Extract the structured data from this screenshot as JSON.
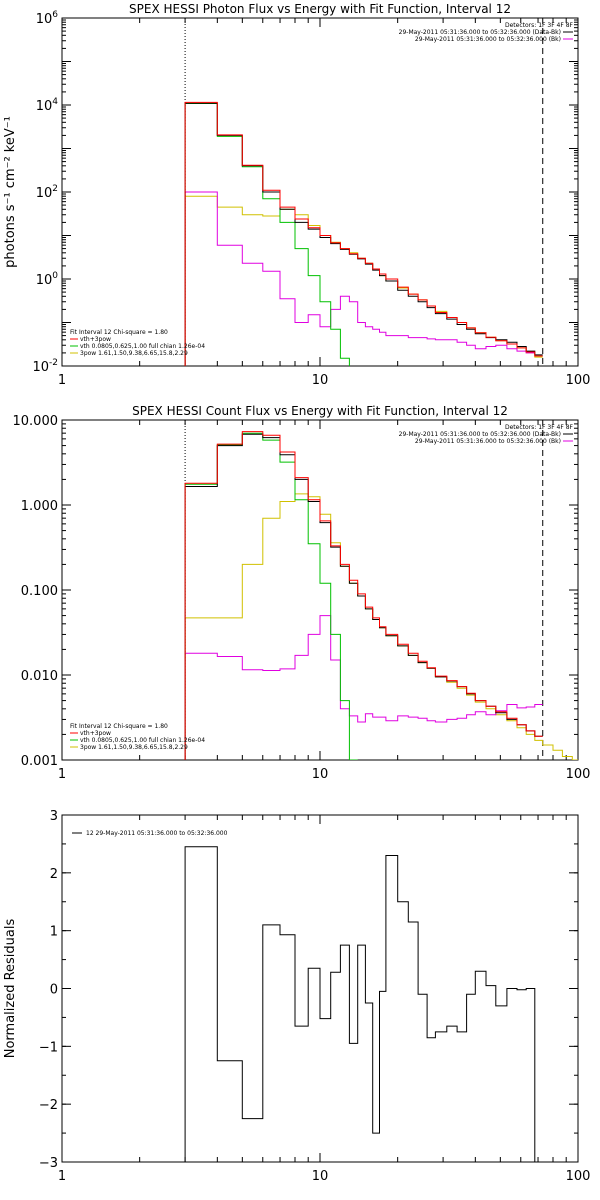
{
  "chart_data": [
    {
      "type": "line",
      "title": "SPEX HESSI Photon Flux vs Energy with Fit Function, Interval 12",
      "xlabel": "",
      "ylabel": "photons s⁻¹ cm⁻² keV⁻¹",
      "xscale": "log",
      "yscale": "log",
      "xlim": [
        1,
        100
      ],
      "ylim": [
        0.01,
        1000000
      ],
      "x_ticks": [
        "1",
        "10",
        "100"
      ],
      "y_ticks": [
        {
          "label": "10",
          "sup": "6",
          "value": 1000000
        },
        {
          "label": "10",
          "sup": "4",
          "value": 10000
        },
        {
          "label": "10",
          "sup": "2",
          "value": 100
        },
        {
          "label": "10",
          "sup": "0",
          "value": 1
        },
        {
          "label": "10",
          "sup": "-2",
          "value": 0.01
        }
      ],
      "vlines": [
        {
          "x": 3,
          "style": "dotted"
        },
        {
          "x": 73,
          "style": "dashed"
        }
      ],
      "legend_header": "Detectors: 1F 3F 4F 8F",
      "legend_entries": [
        {
          "text": "29-May-2011 05:31:36.000 to 05:32:36.000 (Data-Bk)",
          "color": "#000000"
        },
        {
          "text": "29-May-2011 05:31:36.000 to 05:32:36.000 (Bk)",
          "color": "#e000e0"
        }
      ],
      "fit_header": "Fit Interval 12   Chi-square = 1.80",
      "fit_entries": [
        {
          "text": "vth+3pow",
          "color": "#ff0000"
        },
        {
          "text": "vth 0.0805,0.625,1.00  full chian 1.26e-04",
          "color": "#00c000"
        },
        {
          "text": "3pow 1.61,1.50,9.38,6.65,15.8,2.29",
          "color": "#d0c000"
        }
      ],
      "bin_edges": [
        3,
        4,
        5,
        6,
        7,
        8,
        9,
        10,
        11,
        12,
        13,
        14,
        15,
        16,
        17,
        18,
        20,
        22,
        24,
        26,
        28,
        31,
        34,
        37,
        40,
        44,
        48,
        53,
        58,
        63,
        68,
        73,
        80,
        87
      ],
      "series": [
        {
          "name": "Data-Bk",
          "color": "#000000",
          "values": [
            11000,
            2000,
            400,
            100,
            40,
            20,
            14,
            9,
            6.5,
            4.8,
            3.7,
            2.9,
            2.2,
            1.6,
            1.2,
            0.9,
            0.55,
            0.4,
            0.3,
            0.22,
            0.16,
            0.12,
            0.09,
            0.07,
            0.055,
            0.045,
            0.04,
            0.035,
            0.028,
            0.022,
            0.018
          ]
        },
        {
          "name": "vth+3pow",
          "color": "#ff0000",
          "values": [
            11500,
            2050,
            410,
            110,
            45,
            24,
            15,
            10,
            6.8,
            5.0,
            3.8,
            3.0,
            2.3,
            1.7,
            1.3,
            1.0,
            0.65,
            0.45,
            0.33,
            0.24,
            0.17,
            0.13,
            0.1,
            0.075,
            0.058,
            0.046,
            0.038,
            0.032,
            0.026,
            0.021,
            0.017
          ]
        },
        {
          "name": "vth",
          "color": "#00c000",
          "values": [
            10800,
            1900,
            380,
            70,
            20,
            5,
            1.2,
            0.3,
            0.07,
            0.015,
            0.005
          ]
        },
        {
          "name": "3pow",
          "color": "#d0c000",
          "values": [
            80,
            45,
            30,
            28,
            40,
            30,
            17,
            10,
            7,
            5,
            4,
            3,
            2.3,
            1.7,
            1.2,
            0.9,
            0.62,
            0.45,
            0.33,
            0.24,
            0.18,
            0.13,
            0.1,
            0.075,
            0.058,
            0.046,
            0.038,
            0.032,
            0.026,
            0.02,
            0.016
          ]
        },
        {
          "name": "Bk",
          "color": "#e000e0",
          "values": [
            100,
            6,
            2.3,
            1.5,
            0.35,
            0.1,
            0.15,
            0.08,
            0.2,
            0.4,
            0.3,
            0.1,
            0.08,
            0.07,
            0.06,
            0.05,
            0.05,
            0.045,
            0.045,
            0.042,
            0.04,
            0.04,
            0.035,
            0.03,
            0.025,
            0.028,
            0.03,
            0.025,
            0.022,
            0.02
          ]
        }
      ]
    },
    {
      "type": "line",
      "title": "SPEX HESSI Count Flux vs Energy with Fit Function, Interval 12",
      "xlabel": "",
      "ylabel": "",
      "xscale": "log",
      "yscale": "log",
      "xlim": [
        1,
        100
      ],
      "ylim": [
        0.001,
        10
      ],
      "x_ticks": [
        "1",
        "10",
        "100"
      ],
      "y_ticks": [
        {
          "label": "10.000",
          "value": 10
        },
        {
          "label": "1.000",
          "value": 1
        },
        {
          "label": "0.100",
          "value": 0.1
        },
        {
          "label": "0.010",
          "value": 0.01
        },
        {
          "label": "0.001",
          "value": 0.001
        }
      ],
      "vlines": [
        {
          "x": 3,
          "style": "dotted"
        },
        {
          "x": 73,
          "style": "dashed"
        }
      ],
      "legend_header": "Detectors: 1F 3F 4F 8F",
      "legend_entries": [
        {
          "text": "29-May-2011 05:31:36.000 to 05:32:36.000 (Data-Bk)",
          "color": "#000000"
        },
        {
          "text": "29-May-2011 05:31:36.000 to 05:32:36.000 (Bk)",
          "color": "#e000e0"
        }
      ],
      "fit_header": "Fit Interval 12   Chi-square = 1.80",
      "fit_entries": [
        {
          "text": "vth+3pow",
          "color": "#ff0000"
        },
        {
          "text": "vth 0.0805,0.625,1.00  full chian 1.26e-04",
          "color": "#00c000"
        },
        {
          "text": "3pow 1.61,1.50,9.38,6.65,15.8,2.29",
          "color": "#d0c000"
        }
      ],
      "bin_edges": [
        3,
        4,
        5,
        6,
        7,
        8,
        9,
        10,
        11,
        12,
        13,
        14,
        15,
        16,
        17,
        18,
        20,
        22,
        24,
        26,
        28,
        31,
        34,
        37,
        40,
        44,
        48,
        53,
        58,
        63,
        68,
        73,
        80,
        87,
        95,
        100
      ],
      "series": [
        {
          "name": "Data-Bk",
          "color": "#000000",
          "values": [
            1.65,
            5.0,
            6.8,
            6.2,
            3.9,
            2.0,
            1.1,
            0.62,
            0.32,
            0.19,
            0.12,
            0.085,
            0.06,
            0.045,
            0.036,
            0.029,
            0.022,
            0.017,
            0.014,
            0.012,
            0.0095,
            0.0085,
            0.0073,
            0.006,
            0.005,
            0.0043,
            0.0036,
            0.003,
            0.0026,
            0.0022,
            0.0019
          ]
        },
        {
          "name": "vth+3pow",
          "color": "#ff0000",
          "values": [
            1.8,
            5.2,
            7.3,
            6.6,
            4.2,
            2.1,
            1.15,
            0.65,
            0.33,
            0.2,
            0.13,
            0.09,
            0.063,
            0.047,
            0.037,
            0.03,
            0.023,
            0.018,
            0.0145,
            0.0122,
            0.0097,
            0.0086,
            0.0073,
            0.0061,
            0.005,
            0.0043,
            0.0037,
            0.0031,
            0.0026,
            0.0022,
            0.0019
          ]
        },
        {
          "name": "vth",
          "color": "#00c000",
          "values": [
            1.75,
            5.1,
            7.0,
            5.8,
            3.2,
            1.15,
            0.35,
            0.12,
            0.03,
            0.005,
            0.001
          ]
        },
        {
          "name": "3pow",
          "color": "#d0c000",
          "values": [
            0.047,
            0.047,
            0.2,
            0.7,
            1.1,
            1.35,
            1.25,
            0.78,
            0.36,
            0.19,
            0.12,
            0.085,
            0.06,
            0.045,
            0.036,
            0.029,
            0.022,
            0.017,
            0.014,
            0.012,
            0.0095,
            0.0082,
            0.007,
            0.0058,
            0.0048,
            0.004,
            0.0034,
            0.0029,
            0.0024,
            0.002,
            0.0017,
            0.0015,
            0.0013,
            0.0011,
            0.001
          ]
        },
        {
          "name": "Bk",
          "color": "#e000e0",
          "values": [
            0.018,
            0.0165,
            0.0115,
            0.0113,
            0.0118,
            0.017,
            0.03,
            0.05,
            0.015,
            0.004,
            0.0033,
            0.0028,
            0.0035,
            0.0032,
            0.0032,
            0.0029,
            0.0033,
            0.0032,
            0.0031,
            0.0029,
            0.0028,
            0.003,
            0.0031,
            0.0034,
            0.0037,
            0.0034,
            0.0038,
            0.0045,
            0.0041,
            0.0042,
            0.0045
          ]
        }
      ]
    },
    {
      "type": "line",
      "title": "",
      "xlabel": "",
      "ylabel": "Normalized Residuals",
      "xscale": "log",
      "yscale": "linear",
      "xlim": [
        1,
        100
      ],
      "ylim": [
        -3,
        3
      ],
      "x_ticks": [
        "1",
        "10",
        "100"
      ],
      "y_ticks": [
        {
          "label": "3",
          "value": 3
        },
        {
          "label": "2",
          "value": 2
        },
        {
          "label": "1",
          "value": 1
        },
        {
          "label": "0",
          "value": 0
        },
        {
          "label": "−1",
          "value": -1
        },
        {
          "label": "−2",
          "value": -2
        },
        {
          "label": "−3",
          "value": -3
        }
      ],
      "legend_entries": [
        {
          "text": "12  29-May-2011 05:31:36.000 to 05:32:36.000",
          "color": "#000000"
        }
      ],
      "bin_edges": [
        3,
        4,
        5,
        6,
        7,
        8,
        9,
        10,
        11,
        12,
        13,
        14,
        15,
        16,
        17,
        18,
        20,
        22,
        24,
        26,
        28,
        31,
        34,
        37,
        40,
        44,
        48,
        53,
        58,
        63,
        68,
        73
      ],
      "series": [
        {
          "name": "12",
          "color": "#000000",
          "values": [
            2.45,
            -1.25,
            -2.25,
            1.1,
            0.93,
            -0.65,
            0.35,
            -0.52,
            0.28,
            0.75,
            -0.95,
            0.75,
            -0.25,
            -2.5,
            -0.05,
            2.3,
            1.5,
            1.15,
            -0.1,
            -0.85,
            -0.75,
            -0.65,
            -0.75,
            -0.1,
            0.3,
            0.05,
            -0.3,
            0.0,
            -0.02,
            0.0
          ]
        }
      ]
    }
  ]
}
